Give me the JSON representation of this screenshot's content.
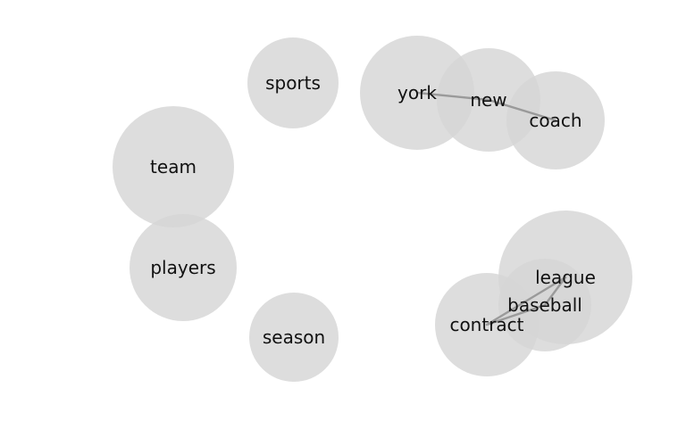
{
  "nodes": [
    {
      "id": "sports",
      "label": "sports"
    },
    {
      "id": "york",
      "label": "york"
    },
    {
      "id": "new",
      "label": "new"
    },
    {
      "id": "coach",
      "label": "coach"
    },
    {
      "id": "team",
      "label": "team"
    },
    {
      "id": "players",
      "label": "players"
    },
    {
      "id": "season",
      "label": "season"
    },
    {
      "id": "league",
      "label": "league"
    },
    {
      "id": "baseball",
      "label": "baseball"
    },
    {
      "id": "contract",
      "label": "contract"
    }
  ],
  "edges": [
    {
      "source": "york",
      "target": "new"
    },
    {
      "source": "new",
      "target": "coach"
    },
    {
      "source": "league",
      "target": "baseball"
    },
    {
      "source": "baseball",
      "target": "contract"
    },
    {
      "source": "league",
      "target": "contract"
    }
  ],
  "colors": {
    "node_fill": "#d6d6d6",
    "edge": "#9a9a9a",
    "label": "#111111",
    "background": "#ffffff"
  }
}
